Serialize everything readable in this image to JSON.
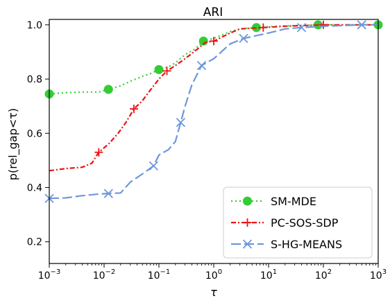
{
  "chart_data": {
    "type": "line",
    "title": "ARI",
    "xlabel": "τ",
    "ylabel": "p(rel_gap<τ)",
    "xscale": "log",
    "xlim": [
      0.001,
      1000
    ],
    "ylim": [
      0.12,
      1.02
    ],
    "x_ticks": [
      {
        "value": 0.001,
        "base": "10",
        "exp": "−3"
      },
      {
        "value": 0.01,
        "base": "10",
        "exp": "−2"
      },
      {
        "value": 0.1,
        "base": "10",
        "exp": "−1"
      },
      {
        "value": 1,
        "base": "10",
        "exp": "0"
      },
      {
        "value": 10,
        "base": "10",
        "exp": "1"
      },
      {
        "value": 100,
        "base": "10",
        "exp": "2"
      },
      {
        "value": 1000,
        "base": "10",
        "exp": "3"
      }
    ],
    "y_ticks": [
      {
        "value": 0.2,
        "label": "0.2"
      },
      {
        "value": 0.4,
        "label": "0.4"
      },
      {
        "value": 0.6,
        "label": "0.6"
      },
      {
        "value": 0.8,
        "label": "0.8"
      },
      {
        "value": 1.0,
        "label": "1.0"
      }
    ],
    "grid": false,
    "legend_position": "bottom-right",
    "series": [
      {
        "name": "SM-MDE",
        "color": "#33cc33",
        "line_style": "dotted",
        "marker": "circle",
        "points": [
          [
            0.001,
            0.745
          ],
          [
            0.002,
            0.75
          ],
          [
            0.004,
            0.752
          ],
          [
            0.008,
            0.752
          ],
          [
            0.012,
            0.762
          ],
          [
            0.02,
            0.775
          ],
          [
            0.03,
            0.792
          ],
          [
            0.05,
            0.81
          ],
          [
            0.07,
            0.82
          ],
          [
            0.1,
            0.835
          ],
          [
            0.15,
            0.845
          ],
          [
            0.2,
            0.86
          ],
          [
            0.3,
            0.89
          ],
          [
            0.45,
            0.91
          ],
          [
            0.65,
            0.94
          ],
          [
            1,
            0.95
          ],
          [
            2,
            0.975
          ],
          [
            3,
            0.985
          ],
          [
            6,
            0.99
          ],
          [
            15,
            0.995
          ],
          [
            40,
            0.998
          ],
          [
            80,
            1.0
          ],
          [
            1000,
            1.0
          ]
        ],
        "marker_x": [
          0.001,
          0.012,
          0.1,
          0.65,
          6,
          80,
          1000
        ]
      },
      {
        "name": "PC-SOS-SDP",
        "color": "#ee1111",
        "line_style": "dashdot",
        "marker": "plus",
        "points": [
          [
            0.001,
            0.462
          ],
          [
            0.002,
            0.47
          ],
          [
            0.004,
            0.475
          ],
          [
            0.006,
            0.49
          ],
          [
            0.008,
            0.53
          ],
          [
            0.012,
            0.56
          ],
          [
            0.018,
            0.6
          ],
          [
            0.025,
            0.64
          ],
          [
            0.035,
            0.69
          ],
          [
            0.05,
            0.72
          ],
          [
            0.07,
            0.76
          ],
          [
            0.1,
            0.8
          ],
          [
            0.14,
            0.83
          ],
          [
            0.2,
            0.85
          ],
          [
            0.3,
            0.875
          ],
          [
            0.5,
            0.91
          ],
          [
            0.7,
            0.935
          ],
          [
            1,
            0.94
          ],
          [
            2,
            0.97
          ],
          [
            3,
            0.985
          ],
          [
            8,
            0.99
          ],
          [
            20,
            0.995
          ],
          [
            100,
            1.0
          ],
          [
            1000,
            1.0
          ]
        ],
        "marker_x": [
          0.008,
          0.035,
          0.14,
          1,
          8,
          100
        ]
      },
      {
        "name": "S-HG-MEANS",
        "color": "#6d96dc",
        "line_style": "dashed",
        "marker": "x",
        "points": [
          [
            0.001,
            0.36
          ],
          [
            0.002,
            0.362
          ],
          [
            0.004,
            0.37
          ],
          [
            0.008,
            0.376
          ],
          [
            0.012,
            0.378
          ],
          [
            0.02,
            0.38
          ],
          [
            0.03,
            0.42
          ],
          [
            0.05,
            0.45
          ],
          [
            0.08,
            0.48
          ],
          [
            0.1,
            0.52
          ],
          [
            0.15,
            0.54
          ],
          [
            0.2,
            0.57
          ],
          [
            0.25,
            0.64
          ],
          [
            0.3,
            0.7
          ],
          [
            0.4,
            0.78
          ],
          [
            0.6,
            0.85
          ],
          [
            1,
            0.875
          ],
          [
            2,
            0.93
          ],
          [
            3.5,
            0.95
          ],
          [
            10,
            0.97
          ],
          [
            20,
            0.985
          ],
          [
            40,
            0.99
          ],
          [
            100,
            0.995
          ],
          [
            500,
            1.0
          ],
          [
            1000,
            1.0
          ]
        ],
        "marker_x": [
          0.001,
          0.012,
          0.08,
          0.25,
          0.6,
          3.5,
          40,
          500
        ]
      }
    ]
  }
}
